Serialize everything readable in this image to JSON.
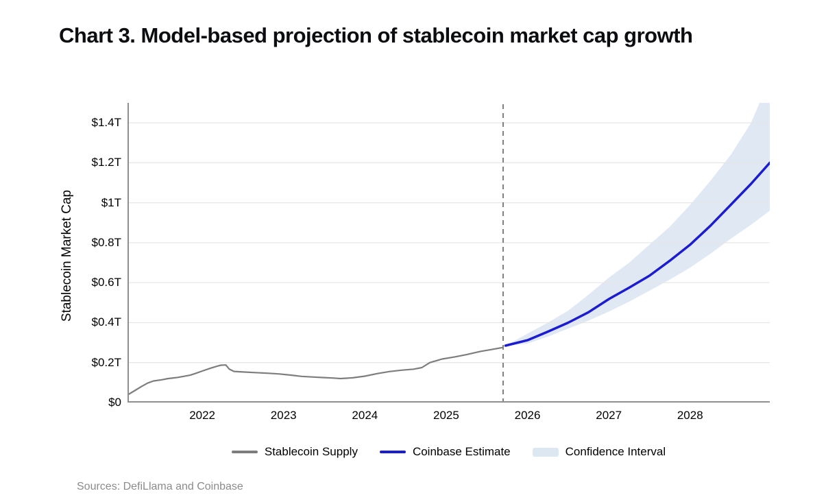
{
  "title": "Chart 3. Model-based projection of stablecoin market cap growth",
  "sources_note": "Sources: DefiLlama and Coinbase",
  "legend": {
    "items": [
      {
        "label": "Stablecoin Supply",
        "type": "line",
        "color": "#7d7d7d",
        "icon": "supply-line-swatch"
      },
      {
        "label": "Coinbase Estimate",
        "type": "line",
        "color": "#1b1cd0",
        "icon": "estimate-line-swatch"
      },
      {
        "label": "Confidence Interval",
        "type": "band",
        "color": "#dde7f2",
        "icon": "confidence-band-swatch"
      }
    ]
  },
  "chart_data": {
    "type": "line",
    "title": "Chart 3. Model-based projection of stablecoin market cap growth",
    "xlabel": "",
    "ylabel": "Stablecoin Market Cap",
    "x_range": [
      2021.08,
      2028.98
    ],
    "y_range": [
      0,
      1.5
    ],
    "x_ticks": [
      2022,
      2023,
      2024,
      2025,
      2026,
      2027,
      2028
    ],
    "x_tick_labels": [
      "2022",
      "2023",
      "2024",
      "2025",
      "2026",
      "2027",
      "2028"
    ],
    "y_ticks": [
      0,
      0.2,
      0.4,
      0.6,
      0.8,
      1.0,
      1.2,
      1.4
    ],
    "y_tick_labels": [
      "$0",
      "$0.2T",
      "$0.4T",
      "$0.6T",
      "$0.8T",
      "$1T",
      "$1.2T",
      "$1.4T"
    ],
    "grid": "horizontal",
    "legend_position": "bottom",
    "projection_divider_x": 2025.7,
    "colors": {
      "grid": "#e5e5e5",
      "axis": "#8f8f8f",
      "divider": "#7f7f7f"
    },
    "series": [
      {
        "name": "Stablecoin Supply",
        "color": "#7d7d7d",
        "points": [
          [
            2021.08,
            0.038
          ],
          [
            2021.17,
            0.06
          ],
          [
            2021.25,
            0.08
          ],
          [
            2021.33,
            0.098
          ],
          [
            2021.4,
            0.108
          ],
          [
            2021.5,
            0.114
          ],
          [
            2021.58,
            0.12
          ],
          [
            2021.7,
            0.126
          ],
          [
            2021.77,
            0.131
          ],
          [
            2021.85,
            0.137
          ],
          [
            2021.91,
            0.145
          ],
          [
            2022.0,
            0.158
          ],
          [
            2022.1,
            0.172
          ],
          [
            2022.19,
            0.183
          ],
          [
            2022.23,
            0.187
          ],
          [
            2022.29,
            0.188
          ],
          [
            2022.33,
            0.168
          ],
          [
            2022.39,
            0.156
          ],
          [
            2022.5,
            0.153
          ],
          [
            2022.65,
            0.15
          ],
          [
            2022.8,
            0.147
          ],
          [
            2022.95,
            0.143
          ],
          [
            2023.1,
            0.137
          ],
          [
            2023.22,
            0.131
          ],
          [
            2023.35,
            0.128
          ],
          [
            2023.5,
            0.125
          ],
          [
            2023.6,
            0.123
          ],
          [
            2023.7,
            0.12
          ],
          [
            2023.85,
            0.124
          ],
          [
            2024.0,
            0.132
          ],
          [
            2024.15,
            0.145
          ],
          [
            2024.3,
            0.155
          ],
          [
            2024.45,
            0.162
          ],
          [
            2024.6,
            0.167
          ],
          [
            2024.7,
            0.175
          ],
          [
            2024.8,
            0.2
          ],
          [
            2024.95,
            0.218
          ],
          [
            2025.1,
            0.228
          ],
          [
            2025.25,
            0.24
          ],
          [
            2025.42,
            0.256
          ],
          [
            2025.55,
            0.265
          ],
          [
            2025.7,
            0.276
          ]
        ]
      },
      {
        "name": "Coinbase Estimate",
        "color": "#1b1cd0",
        "points": [
          [
            2025.73,
            0.285
          ],
          [
            2026.0,
            0.312
          ],
          [
            2026.25,
            0.355
          ],
          [
            2026.5,
            0.4
          ],
          [
            2026.75,
            0.452
          ],
          [
            2027.0,
            0.518
          ],
          [
            2027.25,
            0.575
          ],
          [
            2027.5,
            0.635
          ],
          [
            2027.75,
            0.71
          ],
          [
            2028.0,
            0.79
          ],
          [
            2028.25,
            0.885
          ],
          [
            2028.5,
            0.99
          ],
          [
            2028.75,
            1.095
          ],
          [
            2028.98,
            1.2
          ]
        ]
      }
    ],
    "band": {
      "name": "Confidence Interval",
      "color": "#dde7f2",
      "points": [
        [
          2025.73,
          0.285,
          0.285
        ],
        [
          2026.0,
          0.295,
          0.345
        ],
        [
          2026.25,
          0.33,
          0.4
        ],
        [
          2026.5,
          0.37,
          0.46
        ],
        [
          2026.75,
          0.41,
          0.54
        ],
        [
          2027.0,
          0.455,
          0.625
        ],
        [
          2027.25,
          0.505,
          0.7
        ],
        [
          2027.5,
          0.56,
          0.79
        ],
        [
          2027.75,
          0.615,
          0.88
        ],
        [
          2028.0,
          0.675,
          0.99
        ],
        [
          2028.25,
          0.745,
          1.11
        ],
        [
          2028.5,
          0.82,
          1.24
        ],
        [
          2028.75,
          0.89,
          1.4
        ],
        [
          2028.98,
          0.96,
          1.62
        ]
      ]
    }
  }
}
